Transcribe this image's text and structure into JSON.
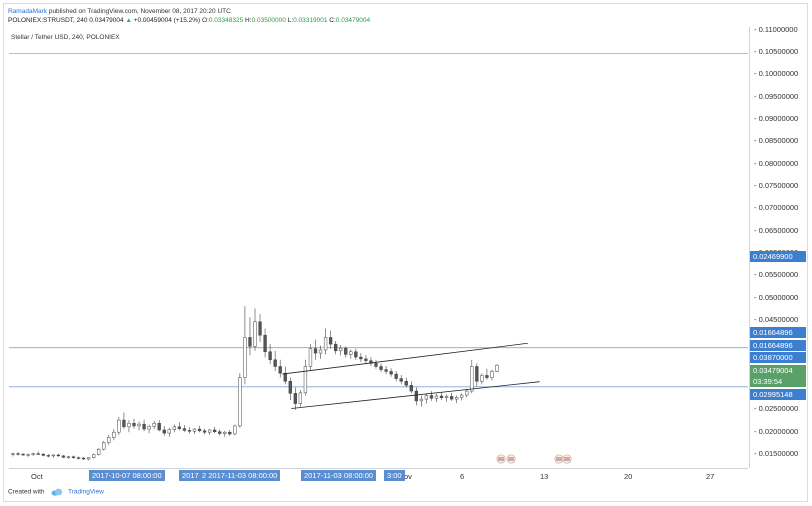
{
  "header": {
    "author": "RamadaMark",
    "published": "published on TradingView.com, November 08, 2017 20:20 UTC",
    "symbol_line": "POLONIEX:STRUSDT, 240",
    "price": "0.03479004",
    "change": "+0.00459004 (+15.2%)",
    "ohlc": {
      "o_label": "O:",
      "o": "0.03348325",
      "h_label": "H:",
      "h": "0.03500000",
      "l_label": "L:",
      "l": "0.03319001",
      "c_label": "C:",
      "c": "0.03479004"
    }
  },
  "chart_title": "Stellar / Tether USD, 240, POLONIEX",
  "price_axis": {
    "ticks": [
      "0.11000000",
      "0.10500000",
      "0.10000000",
      "0.09500000",
      "0.09000000",
      "0.08500000",
      "0.08000000",
      "0.07500000",
      "0.07000000",
      "0.06500000",
      "0.06000000",
      "0.05500000",
      "0.05000000",
      "0.04500000",
      "0.02500000",
      "0.02000000",
      "0.01500000"
    ],
    "badges": [
      {
        "text": "0.02469900",
        "color": "#3d7fcf"
      },
      {
        "text": "0.01664896",
        "color": "#3d7fcf"
      },
      {
        "text": "0.01664896",
        "color": "#3d7fcf"
      },
      {
        "text": "0.03870000",
        "color": "#3d7fcf"
      },
      {
        "text": "0.03479004",
        "color": "#5aa069"
      },
      {
        "text": "03:39:54",
        "color": "#5aa069"
      },
      {
        "text": "0.02995148",
        "color": "#3d7fcf"
      }
    ]
  },
  "time_axis": {
    "labels": [
      "Oct",
      "ov",
      "6",
      "13",
      "20",
      "27"
    ],
    "badges": [
      "2017-10-07 08:00:00",
      "2017-1",
      "2 2017-11-03 08:00:00",
      "2017-11-03 08:00:00",
      "3:00"
    ]
  },
  "footer": {
    "created_with": "Created with",
    "brand": "TradingView"
  },
  "chart_data": {
    "type": "candlestick",
    "series": "STRUSDT",
    "x_labels": [
      "Oct",
      "ov",
      "6",
      "13",
      "20",
      "27"
    ],
    "ylim": [
      0.0125,
      0.1125
    ],
    "price_lines": [
      0.1045,
      0.0387,
      0.02995148
    ],
    "channel": {
      "upper": [
        [
          0.37,
          0.0328
        ],
        [
          0.702,
          0.0397
        ]
      ],
      "lower": [
        [
          0.382,
          0.0251
        ],
        [
          0.718,
          0.0311
        ]
      ]
    },
    "candles": [
      [
        0.0148,
        0.0152,
        0.0144,
        0.015
      ],
      [
        0.015,
        0.0154,
        0.0146,
        0.0149
      ],
      [
        0.0149,
        0.0151,
        0.0145,
        0.0147
      ],
      [
        0.0147,
        0.015,
        0.0143,
        0.0148
      ],
      [
        0.0148,
        0.0152,
        0.0145,
        0.015
      ],
      [
        0.015,
        0.0155,
        0.0147,
        0.0149
      ],
      [
        0.0149,
        0.0151,
        0.0144,
        0.0146
      ],
      [
        0.0146,
        0.0149,
        0.0142,
        0.0145
      ],
      [
        0.0145,
        0.0148,
        0.0141,
        0.0147
      ],
      [
        0.0147,
        0.015,
        0.0143,
        0.0145
      ],
      [
        0.0145,
        0.0147,
        0.014,
        0.0142
      ],
      [
        0.0142,
        0.0145,
        0.0138,
        0.0143
      ],
      [
        0.0143,
        0.0146,
        0.0139,
        0.0141
      ],
      [
        0.0141,
        0.0144,
        0.0137,
        0.014
      ],
      [
        0.014,
        0.0143,
        0.0136,
        0.0138
      ],
      [
        0.0138,
        0.0142,
        0.0135,
        0.0141
      ],
      [
        0.0141,
        0.015,
        0.0139,
        0.0148
      ],
      [
        0.0148,
        0.0162,
        0.0146,
        0.016
      ],
      [
        0.016,
        0.0178,
        0.0157,
        0.0175
      ],
      [
        0.0175,
        0.0192,
        0.017,
        0.0186
      ],
      [
        0.0186,
        0.0205,
        0.018,
        0.0198
      ],
      [
        0.0198,
        0.0232,
        0.0192,
        0.0225
      ],
      [
        0.0225,
        0.0242,
        0.0205,
        0.021
      ],
      [
        0.021,
        0.0225,
        0.0198,
        0.0218
      ],
      [
        0.0218,
        0.0228,
        0.0206,
        0.0212
      ],
      [
        0.0212,
        0.0222,
        0.0202,
        0.0216
      ],
      [
        0.0216,
        0.0226,
        0.02,
        0.0205
      ],
      [
        0.0205,
        0.0215,
        0.0196,
        0.0211
      ],
      [
        0.0211,
        0.0223,
        0.0205,
        0.0218
      ],
      [
        0.0218,
        0.0225,
        0.02,
        0.0203
      ],
      [
        0.0203,
        0.0212,
        0.019,
        0.0196
      ],
      [
        0.0196,
        0.0208,
        0.0188,
        0.0204
      ],
      [
        0.0204,
        0.0215,
        0.0198,
        0.021
      ],
      [
        0.021,
        0.022,
        0.0202,
        0.0206
      ],
      [
        0.0206,
        0.0214,
        0.0199,
        0.0202
      ],
      [
        0.0202,
        0.0209,
        0.0195,
        0.02
      ],
      [
        0.02,
        0.0207,
        0.0194,
        0.0205
      ],
      [
        0.0205,
        0.0212,
        0.0198,
        0.0201
      ],
      [
        0.0201,
        0.0206,
        0.0193,
        0.0198
      ],
      [
        0.0198,
        0.0205,
        0.0192,
        0.0203
      ],
      [
        0.0203,
        0.021,
        0.0196,
        0.0199
      ],
      [
        0.0199,
        0.0204,
        0.0191,
        0.0195
      ],
      [
        0.0195,
        0.0201,
        0.0188,
        0.0198
      ],
      [
        0.0198,
        0.0203,
        0.019,
        0.0194
      ],
      [
        0.0194,
        0.0215,
        0.0191,
        0.0212
      ],
      [
        0.0212,
        0.033,
        0.0208,
        0.032
      ],
      [
        0.032,
        0.048,
        0.0305,
        0.041
      ],
      [
        0.041,
        0.0455,
        0.037,
        0.039
      ],
      [
        0.039,
        0.0475,
        0.038,
        0.0445
      ],
      [
        0.0445,
        0.0462,
        0.04,
        0.0415
      ],
      [
        0.0415,
        0.043,
        0.0365,
        0.0378
      ],
      [
        0.0378,
        0.0395,
        0.035,
        0.036
      ],
      [
        0.036,
        0.038,
        0.0335,
        0.0345
      ],
      [
        0.0345,
        0.036,
        0.032,
        0.033
      ],
      [
        0.033,
        0.0345,
        0.0305,
        0.0312
      ],
      [
        0.0312,
        0.032,
        0.027,
        0.0285
      ],
      [
        0.0285,
        0.0298,
        0.0248,
        0.0262
      ],
      [
        0.0262,
        0.0292,
        0.0255,
        0.0286
      ],
      [
        0.0286,
        0.036,
        0.028,
        0.0345
      ],
      [
        0.0345,
        0.0395,
        0.0335,
        0.0385
      ],
      [
        0.0385,
        0.0405,
        0.036,
        0.0375
      ],
      [
        0.0375,
        0.0392,
        0.0362,
        0.0382
      ],
      [
        0.0382,
        0.043,
        0.0372,
        0.041
      ],
      [
        0.041,
        0.0425,
        0.0385,
        0.0395
      ],
      [
        0.0395,
        0.0402,
        0.0372,
        0.038
      ],
      [
        0.038,
        0.0393,
        0.037,
        0.0386
      ],
      [
        0.0386,
        0.039,
        0.0365,
        0.0372
      ],
      [
        0.0372,
        0.0383,
        0.0362,
        0.0378
      ],
      [
        0.0378,
        0.0385,
        0.036,
        0.0366
      ],
      [
        0.0366,
        0.0375,
        0.0355,
        0.0362
      ],
      [
        0.0362,
        0.037,
        0.035,
        0.0358
      ],
      [
        0.0358,
        0.0366,
        0.0346,
        0.0352
      ],
      [
        0.0352,
        0.036,
        0.034,
        0.0345
      ],
      [
        0.0345,
        0.0352,
        0.0333,
        0.0338
      ],
      [
        0.0338,
        0.0346,
        0.0328,
        0.0334
      ],
      [
        0.0334,
        0.0341,
        0.0322,
        0.0328
      ],
      [
        0.0328,
        0.0335,
        0.0312,
        0.0318
      ],
      [
        0.0318,
        0.0326,
        0.0305,
        0.0312
      ],
      [
        0.0312,
        0.032,
        0.0298,
        0.0303
      ],
      [
        0.0303,
        0.0312,
        0.0285,
        0.029
      ],
      [
        0.029,
        0.0298,
        0.0258,
        0.0268
      ],
      [
        0.0268,
        0.028,
        0.0255,
        0.0272
      ],
      [
        0.0272,
        0.0285,
        0.0262,
        0.028
      ],
      [
        0.028,
        0.029,
        0.0268,
        0.0274
      ],
      [
        0.0274,
        0.0284,
        0.0265,
        0.0279
      ],
      [
        0.0279,
        0.0288,
        0.027,
        0.0275
      ],
      [
        0.0275,
        0.0283,
        0.0266,
        0.0278
      ],
      [
        0.0278,
        0.0286,
        0.0268,
        0.0272
      ],
      [
        0.0272,
        0.028,
        0.0263,
        0.0276
      ],
      [
        0.0276,
        0.0285,
        0.0269,
        0.0281
      ],
      [
        0.0281,
        0.0295,
        0.0276,
        0.029
      ],
      [
        0.029,
        0.036,
        0.0285,
        0.0345
      ],
      [
        0.0345,
        0.0352,
        0.03,
        0.0312
      ],
      [
        0.0312,
        0.033,
        0.0305,
        0.0325
      ],
      [
        0.0325,
        0.034,
        0.0315,
        0.032
      ],
      [
        0.032,
        0.0338,
        0.0314,
        0.0334
      ],
      [
        0.0334,
        0.035,
        0.0332,
        0.0348
      ]
    ]
  }
}
